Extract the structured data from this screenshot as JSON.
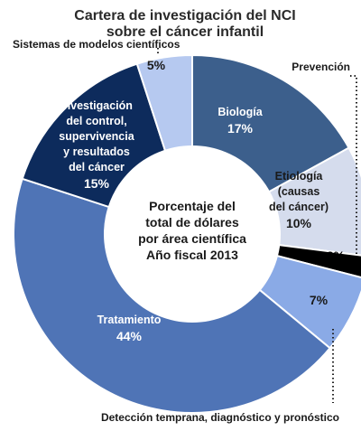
{
  "title_lines": [
    "Cartera de investigación del NCI",
    "sobre el cáncer infantil"
  ],
  "center_lines": [
    "Porcentaje del",
    "total de dólares",
    "por área científica",
    "Año fiscal 2013"
  ],
  "chart_data": {
    "type": "pie",
    "title": "Cartera de investigación del NCI sobre el cáncer infantil",
    "center_label": "Porcentaje del total de dólares por área científica Año fiscal 2013",
    "slices": [
      {
        "label": "Biología",
        "value": 17,
        "value_label": "17%",
        "color": "#3c5f8c",
        "label_lines": [
          "Biología"
        ],
        "label_color": "#ffffff"
      },
      {
        "label": "Etiología (causas del cáncer)",
        "value": 10,
        "value_label": "10%",
        "color": "#d5dced",
        "label_lines": [
          "Etiología",
          "(causas",
          "del cáncer)"
        ],
        "label_color": "#1a1a1a"
      },
      {
        "label": "Prevención",
        "value": 2,
        "value_label": "2%",
        "color": "#000000",
        "label_lines": [],
        "label_color": "#000000"
      },
      {
        "label": "Detección temprana, diagnóstico y pronóstico",
        "value": 7,
        "value_label": "7%",
        "color": "#8aaae6",
        "label_lines": [],
        "label_color": "#1a1a1a"
      },
      {
        "label": "Tratamiento",
        "value": 44,
        "value_label": "44%",
        "color": "#4f74b6",
        "label_lines": [
          "Tratamiento"
        ],
        "label_color": "#ffffff"
      },
      {
        "label": "Investigación del control, supervivencia y resultados del cáncer",
        "value": 15,
        "value_label": "15%",
        "color": "#0d2b5c",
        "label_lines": [
          "Investigación",
          "del control,",
          "supervivencia",
          "y resultados",
          "del cáncer"
        ],
        "label_color": "#ffffff"
      },
      {
        "label": "Sistemas de modelos científicos",
        "value": 5,
        "value_label": "5%",
        "color": "#b6c9f0",
        "label_lines": [],
        "label_color": "#1a1a1a"
      }
    ],
    "external_labels": {
      "sistemas": "Sistemas de modelos científicos",
      "prevencion": "Prevención",
      "deteccion": "Detección temprana, diagnóstico y pronóstico"
    }
  }
}
